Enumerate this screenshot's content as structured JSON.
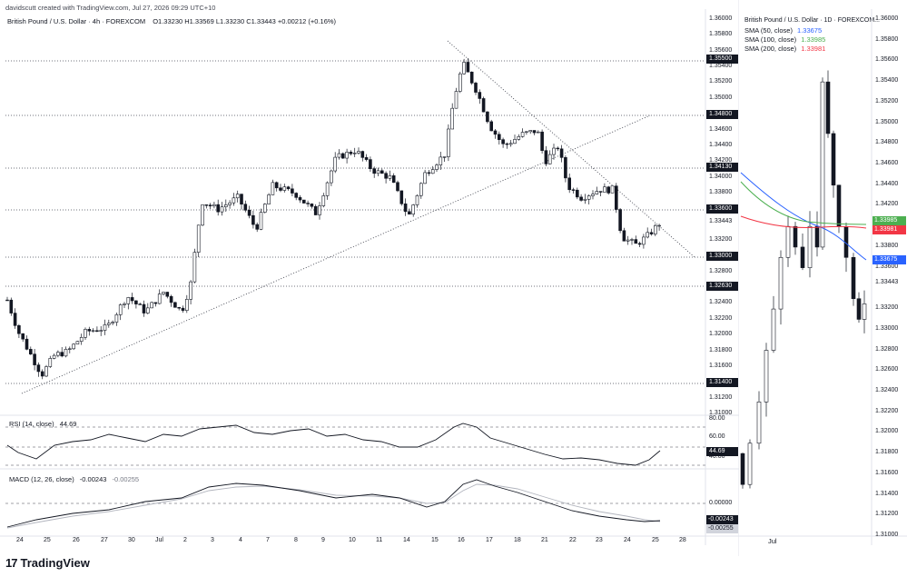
{
  "watermark": "davidscutt created with TradingView.com, Jul 27, 2026 09:29 UTC+10",
  "main_chart": {
    "title": "British Pound / U.S. Dollar · 4h · FOREXCOM",
    "ohlc": "O1.33230 H1.33569 L1.33230 C1.33443 +0.00212 (+0.16%)",
    "price_axis_ticks": [
      "1.36000",
      "1.35800",
      "1.35600",
      "1.35400",
      "1.35200",
      "1.35000",
      "1.34800",
      "1.34600",
      "1.34400",
      "1.34200",
      "1.34000",
      "1.33800",
      "1.33600",
      "1.33443",
      "1.33200",
      "1.33000",
      "1.32800",
      "1.32600",
      "1.32400",
      "1.32200",
      "1.32000",
      "1.31800",
      "1.31600",
      "1.31400",
      "1.31200",
      "1.31000"
    ],
    "level_labels": [
      "1.35500",
      "1.34800",
      "1.34130",
      "1.33600",
      "1.33000",
      "1.32630",
      "1.31400"
    ],
    "last_price": "1.33443",
    "date_labels": [
      "24",
      "25",
      "26",
      "27",
      "30",
      "Jul",
      "2",
      "3",
      "4",
      "7",
      "8",
      "9",
      "10",
      "11",
      "14",
      "15",
      "16",
      "17",
      "18",
      "21",
      "22",
      "23",
      "24",
      "25",
      "28"
    ]
  },
  "rsi_panel": {
    "title": "RSI (14, close)",
    "value": "44.69",
    "ticks": [
      "80.00",
      "60.00",
      "40.00"
    ],
    "label": "44.69"
  },
  "macd_panel": {
    "title": "MACD (12, 26, close)",
    "value1": "-0.00243",
    "value2": "-0.00255",
    "ticks": [
      "0.00000"
    ],
    "label1": "-0.00243",
    "label2": "-0.00255"
  },
  "side_chart": {
    "title": "British Pound / U.S. Dollar · 1D · FOREXCOM...",
    "sma50": "SMA (50, close)",
    "sma50_val": "1.33675",
    "sma100": "SMA (100, close)",
    "sma100_val": "1.33985",
    "sma200": "SMA (200, close)",
    "sma200_val": "1.33981",
    "price_axis_ticks": [
      "1.36000",
      "1.35800",
      "1.35600",
      "1.35400",
      "1.35200",
      "1.35000",
      "1.34800",
      "1.34600",
      "1.34400",
      "1.34200",
      "1.34000",
      "1.33800",
      "1.33600",
      "1.33443",
      "1.33200",
      "1.33000",
      "1.32800",
      "1.32600",
      "1.32400",
      "1.32200",
      "1.32000",
      "1.31800",
      "1.31600",
      "1.31400",
      "1.31200",
      "1.31000"
    ],
    "label_sma100": "1.33985",
    "label_sma200": "1.33981",
    "label_sma50": "1.33675",
    "date_label": "Jul",
    "colors": {
      "sma50": "#2962ff",
      "sma100": "#4caf50",
      "sma200": "#f23645"
    }
  },
  "footer": {
    "brand": "TradingView"
  }
}
